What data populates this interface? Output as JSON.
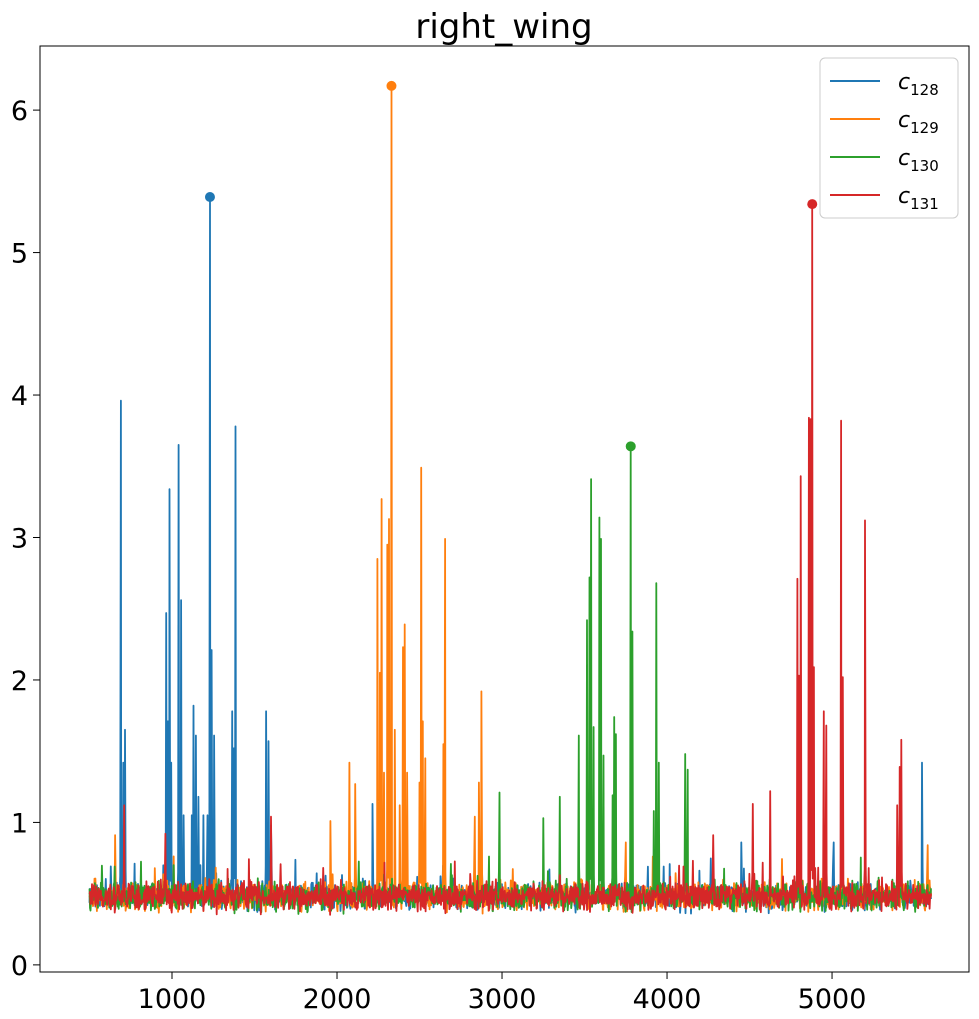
{
  "chart_data": {
    "type": "line",
    "title": "right_wing",
    "xlabel": "",
    "ylabel": "",
    "xlim": [
      200,
      5830
    ],
    "ylim": [
      -0.05,
      6.45
    ],
    "x_range": [
      500,
      5600
    ],
    "xticks": [
      1000,
      2000,
      3000,
      4000,
      5000
    ],
    "yticks": [
      0,
      1,
      2,
      3,
      4,
      5,
      6
    ],
    "grid": false,
    "legend_position": "top-right",
    "baseline": 0.48,
    "series": [
      {
        "name": "c_128",
        "label_base": "c",
        "label_sub": "128",
        "color": "#1f77b4",
        "max_point": {
          "x": 1230,
          "y": 5.39
        },
        "spikes": [
          {
            "x": 690,
            "y": 3.96
          },
          {
            "x": 705,
            "y": 1.42
          },
          {
            "x": 715,
            "y": 1.65
          },
          {
            "x": 965,
            "y": 2.47
          },
          {
            "x": 975,
            "y": 1.71
          },
          {
            "x": 985,
            "y": 3.34
          },
          {
            "x": 995,
            "y": 1.42
          },
          {
            "x": 1040,
            "y": 3.65
          },
          {
            "x": 1055,
            "y": 2.56
          },
          {
            "x": 1070,
            "y": 1.05
          },
          {
            "x": 1120,
            "y": 1.05
          },
          {
            "x": 1130,
            "y": 1.82
          },
          {
            "x": 1145,
            "y": 1.61
          },
          {
            "x": 1160,
            "y": 1.18
          },
          {
            "x": 1190,
            "y": 1.05
          },
          {
            "x": 1215,
            "y": 1.05
          },
          {
            "x": 1230,
            "y": 5.39
          },
          {
            "x": 1240,
            "y": 2.21
          },
          {
            "x": 1255,
            "y": 1.61
          },
          {
            "x": 1365,
            "y": 1.78
          },
          {
            "x": 1375,
            "y": 1.52
          },
          {
            "x": 1385,
            "y": 3.78
          },
          {
            "x": 1570,
            "y": 1.78
          },
          {
            "x": 1585,
            "y": 1.57
          },
          {
            "x": 1600,
            "y": 0.98
          },
          {
            "x": 2215,
            "y": 1.13
          },
          {
            "x": 3520,
            "y": 0.96
          },
          {
            "x": 4450,
            "y": 0.86
          },
          {
            "x": 5010,
            "y": 0.86
          },
          {
            "x": 5545,
            "y": 1.42
          }
        ]
      },
      {
        "name": "c_129",
        "label_base": "c",
        "label_sub": "129",
        "color": "#ff7f0e",
        "max_point": {
          "x": 2330,
          "y": 6.17
        },
        "spikes": [
          {
            "x": 655,
            "y": 0.91
          },
          {
            "x": 1960,
            "y": 1.01
          },
          {
            "x": 2075,
            "y": 1.42
          },
          {
            "x": 2110,
            "y": 1.27
          },
          {
            "x": 2245,
            "y": 2.85
          },
          {
            "x": 2260,
            "y": 2.05
          },
          {
            "x": 2270,
            "y": 3.27
          },
          {
            "x": 2285,
            "y": 1.35
          },
          {
            "x": 2305,
            "y": 2.95
          },
          {
            "x": 2315,
            "y": 3.13
          },
          {
            "x": 2330,
            "y": 6.17
          },
          {
            "x": 2350,
            "y": 1.65
          },
          {
            "x": 2380,
            "y": 1.12
          },
          {
            "x": 2400,
            "y": 2.23
          },
          {
            "x": 2410,
            "y": 2.39
          },
          {
            "x": 2425,
            "y": 1.35
          },
          {
            "x": 2500,
            "y": 1.28
          },
          {
            "x": 2510,
            "y": 3.49
          },
          {
            "x": 2520,
            "y": 1.71
          },
          {
            "x": 2535,
            "y": 1.45
          },
          {
            "x": 2645,
            "y": 1.55
          },
          {
            "x": 2655,
            "y": 2.99
          },
          {
            "x": 2835,
            "y": 1.04
          },
          {
            "x": 2860,
            "y": 1.28
          },
          {
            "x": 2875,
            "y": 1.92
          },
          {
            "x": 3750,
            "y": 0.86
          },
          {
            "x": 5580,
            "y": 0.84
          }
        ]
      },
      {
        "name": "c_130",
        "label_base": "c",
        "label_sub": "130",
        "color": "#2ca02c",
        "max_point": {
          "x": 3780,
          "y": 3.64
        },
        "spikes": [
          {
            "x": 2985,
            "y": 1.21
          },
          {
            "x": 3250,
            "y": 1.03
          },
          {
            "x": 3350,
            "y": 1.18
          },
          {
            "x": 3465,
            "y": 1.61
          },
          {
            "x": 3515,
            "y": 2.42
          },
          {
            "x": 3530,
            "y": 2.72
          },
          {
            "x": 3540,
            "y": 3.41
          },
          {
            "x": 3555,
            "y": 1.67
          },
          {
            "x": 3590,
            "y": 3.14
          },
          {
            "x": 3600,
            "y": 2.99
          },
          {
            "x": 3615,
            "y": 1.47
          },
          {
            "x": 3670,
            "y": 1.19
          },
          {
            "x": 3680,
            "y": 1.74
          },
          {
            "x": 3690,
            "y": 1.62
          },
          {
            "x": 3780,
            "y": 3.64
          },
          {
            "x": 3790,
            "y": 2.34
          },
          {
            "x": 3920,
            "y": 1.08
          },
          {
            "x": 3935,
            "y": 2.68
          },
          {
            "x": 3950,
            "y": 1.42
          },
          {
            "x": 4110,
            "y": 1.48
          },
          {
            "x": 4125,
            "y": 1.37
          }
        ]
      },
      {
        "name": "c_131",
        "label_base": "c",
        "label_sub": "131",
        "color": "#d62728",
        "max_point": {
          "x": 4880,
          "y": 5.34
        },
        "spikes": [
          {
            "x": 710,
            "y": 1.12
          },
          {
            "x": 960,
            "y": 0.92
          },
          {
            "x": 1600,
            "y": 1.04
          },
          {
            "x": 4280,
            "y": 0.91
          },
          {
            "x": 4520,
            "y": 1.13
          },
          {
            "x": 4625,
            "y": 1.22
          },
          {
            "x": 4790,
            "y": 2.71
          },
          {
            "x": 4800,
            "y": 2.03
          },
          {
            "x": 4810,
            "y": 3.43
          },
          {
            "x": 4860,
            "y": 3.84
          },
          {
            "x": 4870,
            "y": 3.83
          },
          {
            "x": 4880,
            "y": 5.34
          },
          {
            "x": 4890,
            "y": 2.09
          },
          {
            "x": 4950,
            "y": 1.78
          },
          {
            "x": 4965,
            "y": 1.68
          },
          {
            "x": 5055,
            "y": 3.82
          },
          {
            "x": 5065,
            "y": 2.02
          },
          {
            "x": 5200,
            "y": 3.12
          },
          {
            "x": 5395,
            "y": 1.12
          },
          {
            "x": 5410,
            "y": 1.39
          },
          {
            "x": 5420,
            "y": 1.58
          }
        ]
      }
    ]
  }
}
